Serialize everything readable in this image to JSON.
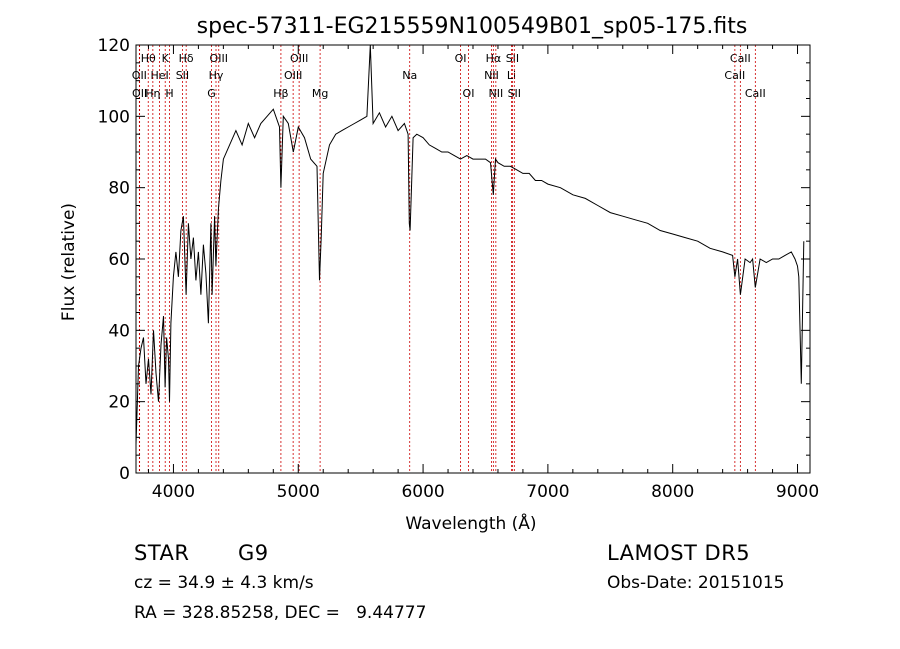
{
  "chart_data": {
    "type": "line",
    "title": "spec-57311-EG215559N100549B01_sp05-175.fits",
    "xlabel": "Wavelength (Å)",
    "ylabel": "Flux (relative)",
    "xlim": [
      3700,
      9100
    ],
    "ylim": [
      0,
      120
    ],
    "x_ticks": [
      4000,
      5000,
      6000,
      7000,
      8000,
      9000
    ],
    "y_ticks": [
      0,
      20,
      40,
      60,
      80,
      100,
      120
    ],
    "line_color": "#000000",
    "marker_color": "#cc0000",
    "grid": false,
    "lines": [
      {
        "label": "Hθ",
        "wavelength": 3798,
        "row": 0
      },
      {
        "label": "OII",
        "wavelength": 3727,
        "row": 1
      },
      {
        "label": "OII",
        "wavelength": 3729,
        "row": 2
      },
      {
        "label": "K",
        "wavelength": 3934,
        "row": 0
      },
      {
        "label": "HeI",
        "wavelength": 3889,
        "row": 1
      },
      {
        "label": "Hη",
        "wavelength": 3835,
        "row": 2
      },
      {
        "label": "H",
        "wavelength": 3969,
        "row": 2
      },
      {
        "label": "Hδ",
        "wavelength": 4102,
        "row": 0
      },
      {
        "label": "SII",
        "wavelength": 4072,
        "row": 1
      },
      {
        "label": "OIII",
        "wavelength": 4363,
        "row": 0
      },
      {
        "label": "Hγ",
        "wavelength": 4341,
        "row": 1
      },
      {
        "label": "G",
        "wavelength": 4305,
        "row": 2
      },
      {
        "label": "Hβ",
        "wavelength": 4861,
        "row": 2
      },
      {
        "label": "OIII",
        "wavelength": 5007,
        "row": 0
      },
      {
        "label": "OIII",
        "wavelength": 4959,
        "row": 1
      },
      {
        "label": "Mg",
        "wavelength": 5175,
        "row": 2
      },
      {
        "label": "Na",
        "wavelength": 5893,
        "row": 1
      },
      {
        "label": "OI",
        "wavelength": 6300,
        "row": 0
      },
      {
        "label": "OI",
        "wavelength": 6364,
        "row": 2
      },
      {
        "label": "Hα",
        "wavelength": 6563,
        "row": 0
      },
      {
        "label": "NII",
        "wavelength": 6548,
        "row": 1
      },
      {
        "label": "NII",
        "wavelength": 6583,
        "row": 2
      },
      {
        "label": "SII",
        "wavelength": 6716,
        "row": 0
      },
      {
        "label": "Li",
        "wavelength": 6708,
        "row": 1
      },
      {
        "label": "SII",
        "wavelength": 6731,
        "row": 2
      },
      {
        "label": "CaII",
        "wavelength": 8542,
        "row": 0
      },
      {
        "label": "CaII",
        "wavelength": 8498,
        "row": 1
      },
      {
        "label": "CaII",
        "wavelength": 8662,
        "row": 2
      }
    ],
    "spectrum": {
      "x": [
        3700,
        3720,
        3740,
        3760,
        3780,
        3800,
        3820,
        3840,
        3860,
        3880,
        3900,
        3920,
        3933,
        3945,
        3960,
        3968,
        3980,
        4000,
        4020,
        4040,
        4060,
        4080,
        4101,
        4120,
        4140,
        4160,
        4180,
        4200,
        4220,
        4240,
        4260,
        4280,
        4300,
        4310,
        4330,
        4340,
        4360,
        4380,
        4400,
        4450,
        4500,
        4550,
        4600,
        4650,
        4700,
        4750,
        4800,
        4850,
        4861,
        4880,
        4920,
        4960,
        5000,
        5050,
        5100,
        5150,
        5170,
        5184,
        5200,
        5250,
        5300,
        5350,
        5400,
        5450,
        5500,
        5550,
        5577,
        5600,
        5650,
        5700,
        5750,
        5800,
        5850,
        5880,
        5890,
        5896,
        5920,
        5950,
        6000,
        6050,
        6100,
        6150,
        6200,
        6250,
        6300,
        6350,
        6400,
        6450,
        6500,
        6540,
        6563,
        6580,
        6600,
        6650,
        6700,
        6750,
        6800,
        6850,
        6900,
        6950,
        7000,
        7100,
        7200,
        7300,
        7400,
        7500,
        7600,
        7700,
        7800,
        7900,
        8000,
        8100,
        8200,
        8300,
        8400,
        8480,
        8498,
        8520,
        8542,
        8580,
        8620,
        8640,
        8662,
        8700,
        8750,
        8800,
        8850,
        8900,
        8950,
        8980,
        9000,
        9010,
        9030,
        9050
      ],
      "y": [
        8,
        30,
        35,
        38,
        25,
        32,
        22,
        40,
        28,
        20,
        36,
        44,
        24,
        38,
        32,
        20,
        42,
        55,
        62,
        55,
        68,
        72,
        50,
        70,
        60,
        66,
        54,
        62,
        50,
        64,
        56,
        42,
        70,
        50,
        72,
        58,
        74,
        82,
        88,
        92,
        96,
        92,
        98,
        94,
        98,
        100,
        102,
        97,
        80,
        100,
        98,
        90,
        97,
        94,
        88,
        86,
        54,
        66,
        84,
        92,
        95,
        96,
        97,
        98,
        99,
        100,
        120,
        98,
        101,
        97,
        100,
        96,
        98,
        95,
        70,
        68,
        94,
        95,
        94,
        92,
        91,
        90,
        90,
        89,
        88,
        89,
        88,
        88,
        88,
        87,
        78,
        88,
        87,
        86,
        86,
        85,
        84,
        84,
        82,
        82,
        81,
        80,
        78,
        77,
        75,
        73,
        72,
        71,
        70,
        68,
        67,
        66,
        65,
        63,
        62,
        61,
        55,
        60,
        50,
        60,
        59,
        60,
        52,
        60,
        59,
        60,
        60,
        61,
        62,
        60,
        58,
        55,
        25,
        65
      ]
    }
  },
  "info": {
    "object_class": "STAR",
    "subclass": "G9",
    "cz": "cz = 34.9 ± 4.3 km/s",
    "coords": "RA = 328.85258, DEC =   9.44777",
    "survey": "LAMOST DR5",
    "obs_date": "Obs-Date: 20151015"
  }
}
